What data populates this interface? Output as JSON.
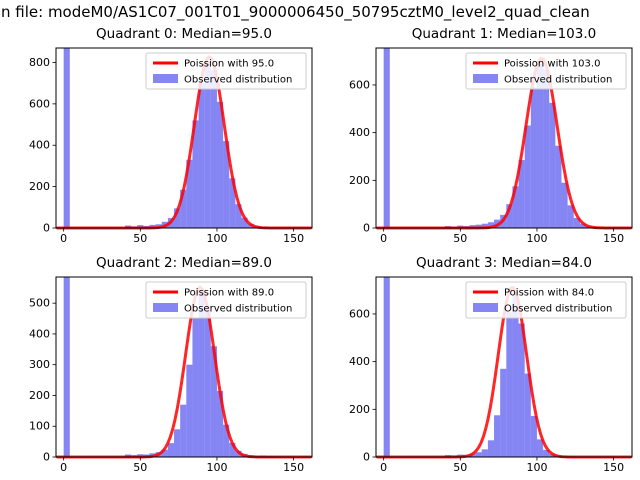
{
  "figure": {
    "suptitle": "n file: modeM0/AS1C07_001T01_9000006450_50795cztM0_level2_quad_clean",
    "colors": {
      "curve": "#ff0000",
      "hist": "#3a3aee",
      "hist_opacity": 0.62,
      "spine": "#000000",
      "legend_border": "#cccccc"
    }
  },
  "chart_data": [
    {
      "type": "histogram",
      "title": "Quadrant 0: Median=95.0",
      "median": 95.0,
      "legend": {
        "curve_label": "Poission with 95.0",
        "hist_label": "Observed distribution"
      },
      "xlim": [
        -5,
        162
      ],
      "ylim": [
        0,
        870
      ],
      "xticks": [
        0,
        50,
        100,
        150
      ],
      "yticks": [
        0,
        200,
        400,
        600,
        800
      ],
      "bin_start": 0,
      "bin_width": 4,
      "counts": [
        870,
        0,
        0,
        0,
        0,
        0,
        0,
        0,
        0,
        0,
        12,
        8,
        14,
        10,
        15,
        18,
        30,
        48,
        95,
        185,
        330,
        520,
        700,
        805,
        760,
        610,
        420,
        240,
        115,
        50,
        20,
        10,
        5,
        3,
        2,
        2,
        1,
        1,
        1,
        1
      ],
      "curve": {
        "mu": 95,
        "sigma": 9.7,
        "peak": 828
      }
    },
    {
      "type": "histogram",
      "title": "Quadrant 1: Median=103.0",
      "median": 103.0,
      "legend": {
        "curve_label": "Poission with 103.0",
        "hist_label": "Observed distribution"
      },
      "xlim": [
        -5,
        162
      ],
      "ylim": [
        0,
        755
      ],
      "xticks": [
        0,
        50,
        100,
        150
      ],
      "yticks": [
        0,
        200,
        400,
        600
      ],
      "bin_start": 0,
      "bin_width": 4,
      "counts": [
        755,
        0,
        0,
        0,
        0,
        0,
        0,
        0,
        0,
        0,
        8,
        6,
        10,
        8,
        12,
        14,
        18,
        24,
        35,
        55,
        100,
        175,
        285,
        430,
        590,
        690,
        665,
        525,
        345,
        190,
        95,
        42,
        18,
        8,
        4,
        2,
        1,
        1,
        1,
        1
      ],
      "curve": {
        "mu": 103,
        "sigma": 10.1,
        "peak": 712
      }
    },
    {
      "type": "histogram",
      "title": "Quadrant 2: Median=89.0",
      "median": 89.0,
      "legend": {
        "curve_label": "Poission with 89.0",
        "hist_label": "Observed distribution"
      },
      "xlim": [
        -5,
        162
      ],
      "ylim": [
        0,
        585
      ],
      "xticks": [
        0,
        50,
        100,
        150
      ],
      "yticks": [
        0,
        100,
        200,
        300,
        400,
        500
      ],
      "bin_start": 0,
      "bin_width": 4,
      "counts": [
        585,
        0,
        0,
        0,
        0,
        0,
        0,
        0,
        0,
        0,
        8,
        6,
        9,
        8,
        12,
        16,
        24,
        45,
        90,
        170,
        300,
        450,
        540,
        490,
        360,
        215,
        105,
        46,
        20,
        10,
        6,
        4,
        5,
        3,
        3,
        2,
        2,
        1,
        1,
        2
      ],
      "curve": {
        "mu": 89,
        "sigma": 9.4,
        "peak": 552
      }
    },
    {
      "type": "histogram",
      "title": "Quadrant 3: Median=84.0",
      "median": 84.0,
      "legend": {
        "curve_label": "Poission with 84.0",
        "hist_label": "Observed distribution"
      },
      "xlim": [
        -5,
        162
      ],
      "ylim": [
        0,
        755
      ],
      "xticks": [
        0,
        50,
        100,
        150
      ],
      "yticks": [
        0,
        200,
        400,
        600
      ],
      "bin_start": 0,
      "bin_width": 4,
      "counts": [
        755,
        0,
        0,
        0,
        0,
        0,
        0,
        0,
        0,
        0,
        8,
        7,
        10,
        9,
        14,
        20,
        32,
        70,
        175,
        370,
        610,
        690,
        560,
        350,
        172,
        74,
        30,
        13,
        7,
        4,
        3,
        2,
        2,
        1,
        1,
        1,
        1,
        0,
        1,
        1
      ],
      "curve": {
        "mu": 84,
        "sigma": 9.2,
        "peak": 712
      }
    }
  ]
}
